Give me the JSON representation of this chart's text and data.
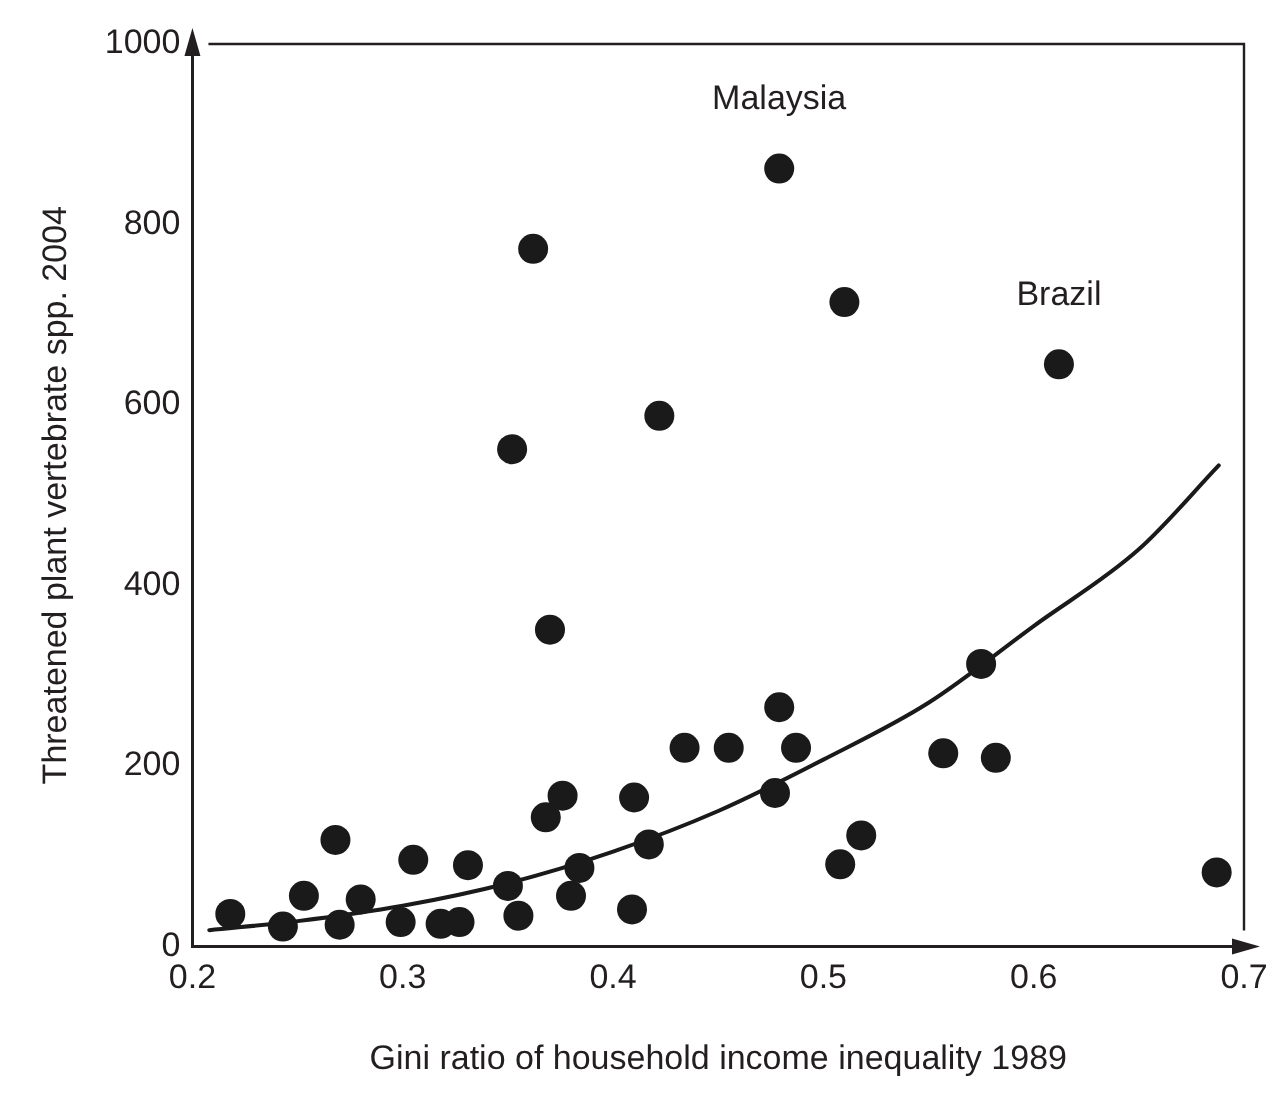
{
  "chart_data": {
    "type": "scatter",
    "xlabel": "Gini ratio of household income inequality 1989",
    "ylabel": "Threatened plant vertebrate spp. 2004",
    "xlim": [
      0.2,
      0.7
    ],
    "xticks": [
      0.2,
      0.3,
      0.4,
      0.5,
      0.6,
      0.7
    ],
    "ylim": [
      0,
      1000
    ],
    "yticks": [
      0,
      200,
      400,
      600,
      800,
      1000
    ],
    "grid": false,
    "legend": false,
    "marker": "circle",
    "series": [
      {
        "type": "scatter",
        "color": "#1a1a1a",
        "x": [
          0.218,
          0.243,
          0.253,
          0.268,
          0.27,
          0.28,
          0.299,
          0.305,
          0.318,
          0.327,
          0.331,
          0.35,
          0.352,
          0.355,
          0.362,
          0.368,
          0.37,
          0.376,
          0.38,
          0.384,
          0.409,
          0.41,
          0.417,
          0.422,
          0.434,
          0.455,
          0.477,
          0.479,
          0.479,
          0.487,
          0.508,
          0.51,
          0.518,
          0.557,
          0.575,
          0.582,
          0.612,
          0.687
        ],
        "values": [
          36,
          22,
          56,
          118,
          24,
          52,
          27,
          96,
          25,
          27,
          90,
          67,
          551,
          34,
          773,
          143,
          351,
          167,
          56,
          87,
          41,
          165,
          113,
          588,
          220,
          220,
          170,
          265,
          862,
          220,
          91,
          714,
          123,
          214,
          313,
          209,
          645,
          82
        ]
      },
      {
        "type": "line",
        "color": "#1a1a1a",
        "marker": "none",
        "line_style": "solid",
        "x": [
          0.208,
          0.25,
          0.3,
          0.35,
          0.4,
          0.45,
          0.5,
          0.55,
          0.6,
          0.65,
          0.688
        ],
        "values": [
          18,
          28,
          45,
          70,
          105,
          150,
          207,
          270,
          355,
          440,
          533
        ]
      }
    ],
    "annotations": [
      {
        "text": "Malaysia",
        "x": 0.479,
        "y": 862
      },
      {
        "text": "Brazil",
        "x": 0.612,
        "y": 645
      }
    ]
  }
}
